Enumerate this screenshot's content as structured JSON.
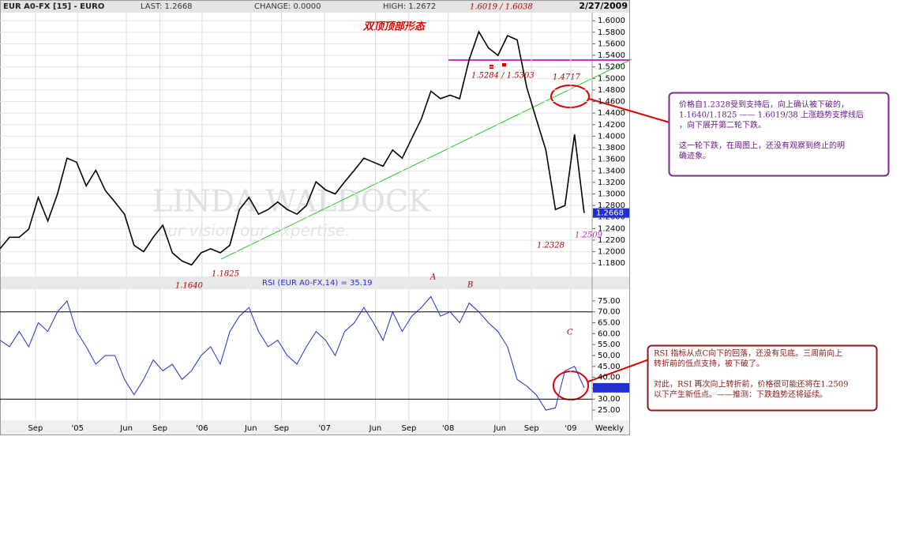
{
  "header": {
    "symbol": "EUR A0-FX [15] - EURO",
    "last": "LAST: 1.2668",
    "change": "CHANGE: 0.0000",
    "high": "HIGH: 1.2672",
    "date": "2/27/2009"
  },
  "chart_data": [
    {
      "type": "line",
      "color": "#000000",
      "grid": true,
      "ylim": [
        1.157,
        1.614
      ],
      "yticks": [
        {
          "value": 1.18,
          "label": "1.1800"
        },
        {
          "value": 1.2,
          "label": "1.2000"
        },
        {
          "value": 1.22,
          "label": "1.2200"
        },
        {
          "value": 1.24,
          "label": "1.2400"
        },
        {
          "value": 1.26,
          "label": "1.2600"
        },
        {
          "value": 1.28,
          "label": "1.2800"
        },
        {
          "value": 1.3,
          "label": "1.3000"
        },
        {
          "value": 1.32,
          "label": "1.3200"
        },
        {
          "value": 1.34,
          "label": "1.3400"
        },
        {
          "value": 1.36,
          "label": "1.3600"
        },
        {
          "value": 1.38,
          "label": "1.3800"
        },
        {
          "value": 1.4,
          "label": "1.4000"
        },
        {
          "value": 1.42,
          "label": "1.4200"
        },
        {
          "value": 1.44,
          "label": "1.4400"
        },
        {
          "value": 1.46,
          "label": "1.4600"
        },
        {
          "value": 1.48,
          "label": "1.4800"
        },
        {
          "value": 1.5,
          "label": "1.5000"
        },
        {
          "value": 1.52,
          "label": "1.5200"
        },
        {
          "value": 1.54,
          "label": "1.5400"
        },
        {
          "value": 1.56,
          "label": "1.5600"
        },
        {
          "value": 1.58,
          "label": "1.5800"
        },
        {
          "value": 1.6,
          "label": "1.6000"
        }
      ],
      "xlim": [
        0,
        62
      ],
      "values": [
        1.205,
        1.225,
        1.225,
        1.239,
        1.294,
        1.253,
        1.3,
        1.362,
        1.355,
        1.314,
        1.341,
        1.306,
        1.286,
        1.265,
        1.211,
        1.2,
        1.225,
        1.246,
        1.198,
        1.184,
        1.177,
        1.198,
        1.205,
        1.198,
        1.211,
        1.273,
        1.294,
        1.265,
        1.273,
        1.286,
        1.273,
        1.265,
        1.28,
        1.321,
        1.307,
        1.3,
        1.321,
        1.341,
        1.362,
        1.355,
        1.348,
        1.376,
        1.362,
        1.396,
        1.43,
        1.478,
        1.465,
        1.471,
        1.465,
        1.533,
        1.581,
        1.553,
        1.54,
        1.574,
        1.567,
        1.485,
        1.43,
        1.376,
        1.273,
        1.28,
        1.403,
        1.267
      ],
      "last_label": "1.2668",
      "watermark": "LINDA WALDOCK",
      "watermark_sub": "our vision our expertise.",
      "title": "双顶顶部形态",
      "annotations": [
        "1.6019 / 1.6038",
        "1.5284 / 1.5303",
        "1.4717",
        "1.2328",
        "1.2509",
        "1.1825",
        "1.1640"
      ]
    },
    {
      "type": "line",
      "color": "#1f2fd0",
      "title": "RSI (EUR A0-FX,14) = 35.19",
      "ylim": [
        20.3,
        80.4
      ],
      "yticks": [
        {
          "value": 25,
          "label": "25.00"
        },
        {
          "value": 30,
          "label": "30.00"
        },
        {
          "value": 35,
          "label": "35.00"
        },
        {
          "value": 40,
          "label": "40.00"
        },
        {
          "value": 45,
          "label": "45.00"
        },
        {
          "value": 50,
          "label": "50.00"
        },
        {
          "value": 55,
          "label": "55.00"
        },
        {
          "value": 60,
          "label": "60.00"
        },
        {
          "value": 65,
          "label": "65.00"
        },
        {
          "value": 70,
          "label": "70.00"
        },
        {
          "value": 75,
          "label": "75.00"
        }
      ],
      "ref_lines": [
        70,
        30
      ],
      "xlim": [
        0,
        62
      ],
      "xticks": [
        {
          "value": 3.7,
          "label": "Sep"
        },
        {
          "value": 8.1,
          "label": "'05"
        },
        {
          "value": 13.2,
          "label": "Jun"
        },
        {
          "value": 16.7,
          "label": "Sep"
        },
        {
          "value": 21.1,
          "label": "'06"
        },
        {
          "value": 26.2,
          "label": "Jun"
        },
        {
          "value": 29.4,
          "label": "Sep"
        },
        {
          "value": 33.9,
          "label": "'07"
        },
        {
          "value": 39.2,
          "label": "Jun"
        },
        {
          "value": 42.7,
          "label": "Sep"
        },
        {
          "value": 46.8,
          "label": "'08"
        },
        {
          "value": 52.2,
          "label": "Jun"
        },
        {
          "value": 55.5,
          "label": "Sep"
        },
        {
          "value": 59.6,
          "label": "'09"
        }
      ],
      "xlabel": "Weekly",
      "values": [
        57,
        54,
        61,
        54,
        65,
        61,
        70,
        75,
        61,
        54,
        46,
        50,
        50,
        39,
        32,
        39,
        48,
        43,
        46,
        39,
        43,
        50,
        54,
        46,
        61,
        68,
        72,
        61,
        54,
        57,
        50,
        46,
        54,
        61,
        57,
        50,
        61,
        65,
        72,
        65,
        57,
        70,
        61,
        68,
        72,
        77,
        68,
        70,
        65,
        74,
        70,
        65,
        61,
        54,
        39,
        36,
        32,
        25,
        26,
        43,
        45,
        35.2
      ],
      "annotations": [
        "A",
        "B",
        "C"
      ]
    }
  ],
  "notes": [
    {
      "paragraphs": [
        [
          "价格自1.2328受到支持后，向上确认被下破的，",
          "1.1640/1.1825 —— 1.6019/38 上涨趋势支撑线后",
          "，向下展开第二轮下跌。"
        ],
        [
          "这一轮下跌，在周图上，还没有观察到终止的明",
          "确迹象。"
        ]
      ]
    },
    {
      "paragraphs": [
        [
          "RSI 指标从点C向下的回落，还没有见底。三周前向上",
          "转折前的低点支持，被下破了。"
        ],
        [
          "对此，RSI 再次向上转折前，价格很可能还将在1.2509",
          "以下产生新低点。——推测：下跌趋势还将延续。"
        ]
      ]
    }
  ]
}
